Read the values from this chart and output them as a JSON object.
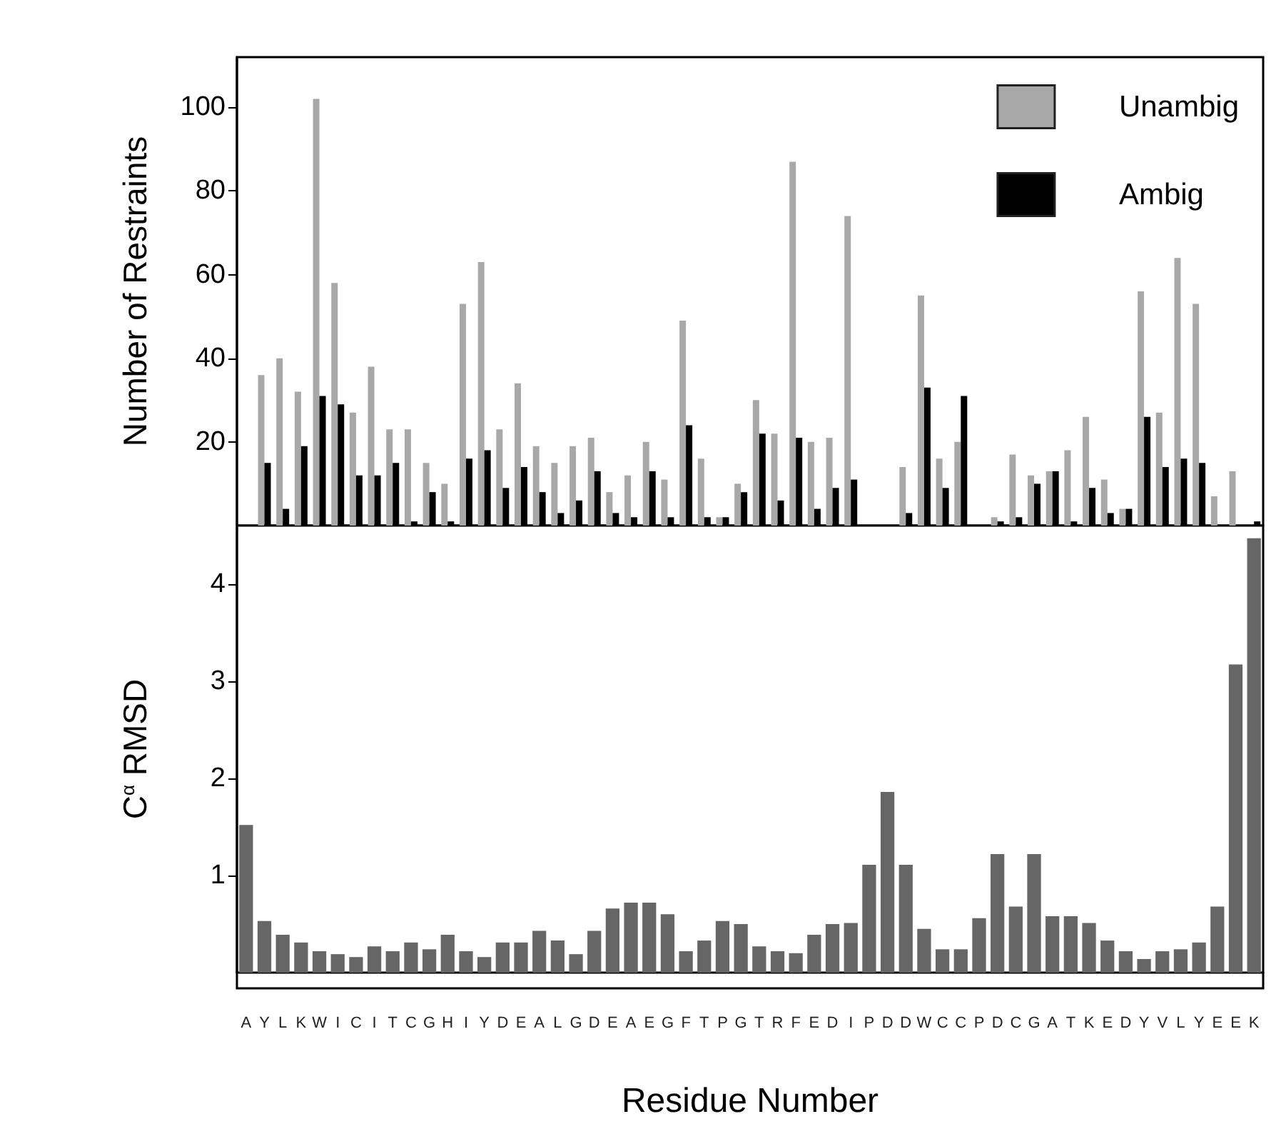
{
  "chart_data": [
    {
      "type": "bar",
      "ylabel": "Number of Restraints",
      "legend": "top right",
      "tick_labels": "y",
      "categories": [
        "A",
        "Y",
        "L",
        "K",
        "W",
        "I",
        "C",
        "I",
        "T",
        "C",
        "G",
        "H",
        "I",
        "Y",
        "D",
        "E",
        "A",
        "L",
        "G",
        "D",
        "E",
        "A",
        "E",
        "G",
        "F",
        "T",
        "P",
        "G",
        "T",
        "R",
        "F",
        "E",
        "D",
        "I",
        "P",
        "D",
        "D",
        "W",
        "C",
        "C",
        "P",
        "D",
        "C",
        "G",
        "A",
        "T",
        "K",
        "E",
        "D",
        "Y",
        "V",
        "L",
        "Y",
        "E",
        "E",
        "K"
      ],
      "ylim": [
        0,
        112
      ],
      "yticks": [
        20,
        40,
        60,
        80,
        100
      ],
      "series": [
        {
          "name": "Unambig",
          "color": "#a8a8a8",
          "values": [
            0,
            36,
            40,
            32,
            102,
            58,
            27,
            38,
            23,
            23,
            15,
            10,
            53,
            63,
            23,
            34,
            19,
            15,
            19,
            21,
            8,
            12,
            20,
            11,
            49,
            16,
            2,
            10,
            30,
            22,
            87,
            20,
            21,
            74,
            0,
            0,
            14,
            55,
            16,
            20,
            0,
            2,
            17,
            12,
            13,
            18,
            26,
            11,
            4,
            56,
            27,
            64,
            53,
            7,
            13,
            0
          ]
        },
        {
          "name": "Ambig",
          "color": "#000000",
          "values": [
            0,
            15,
            4,
            19,
            31,
            29,
            12,
            12,
            15,
            1,
            8,
            1,
            16,
            18,
            9,
            14,
            8,
            3,
            6,
            13,
            3,
            2,
            13,
            2,
            24,
            2,
            2,
            8,
            22,
            6,
            21,
            4,
            9,
            11,
            0,
            0,
            3,
            33,
            9,
            31,
            0,
            1,
            2,
            10,
            13,
            1,
            9,
            3,
            4,
            26,
            14,
            16,
            15,
            0,
            0,
            1
          ]
        }
      ]
    },
    {
      "type": "bar",
      "ylabel": "C$^{α}$ RMSD",
      "xlabel": "Residue Number",
      "categories": [
        "A",
        "Y",
        "L",
        "K",
        "W",
        "I",
        "C",
        "I",
        "T",
        "C",
        "G",
        "H",
        "I",
        "Y",
        "D",
        "E",
        "A",
        "L",
        "G",
        "D",
        "E",
        "A",
        "E",
        "G",
        "F",
        "T",
        "P",
        "G",
        "T",
        "R",
        "F",
        "E",
        "D",
        "I",
        "P",
        "D",
        "D",
        "W",
        "C",
        "C",
        "P",
        "D",
        "C",
        "G",
        "A",
        "T",
        "K",
        "E",
        "D",
        "Y",
        "V",
        "L",
        "Y",
        "E",
        "E",
        "K"
      ],
      "ylim": [
        0,
        4.6
      ],
      "yticks": [
        1,
        2,
        3,
        4
      ],
      "color": "#666666",
      "values": [
        1.52,
        0.53,
        0.39,
        0.31,
        0.22,
        0.19,
        0.16,
        0.27,
        0.22,
        0.31,
        0.24,
        0.39,
        0.22,
        0.16,
        0.31,
        0.31,
        0.43,
        0.33,
        0.19,
        0.43,
        0.66,
        0.72,
        0.72,
        0.6,
        0.22,
        0.33,
        0.53,
        0.5,
        0.27,
        0.22,
        0.2,
        0.39,
        0.5,
        0.51,
        1.11,
        1.86,
        1.11,
        0.45,
        0.24,
        0.24,
        0.56,
        1.22,
        0.68,
        1.22,
        0.58,
        0.58,
        0.51,
        0.33,
        0.22,
        0.14,
        0.22,
        0.24,
        0.31,
        0.68,
        3.17,
        4.47
      ]
    }
  ]
}
